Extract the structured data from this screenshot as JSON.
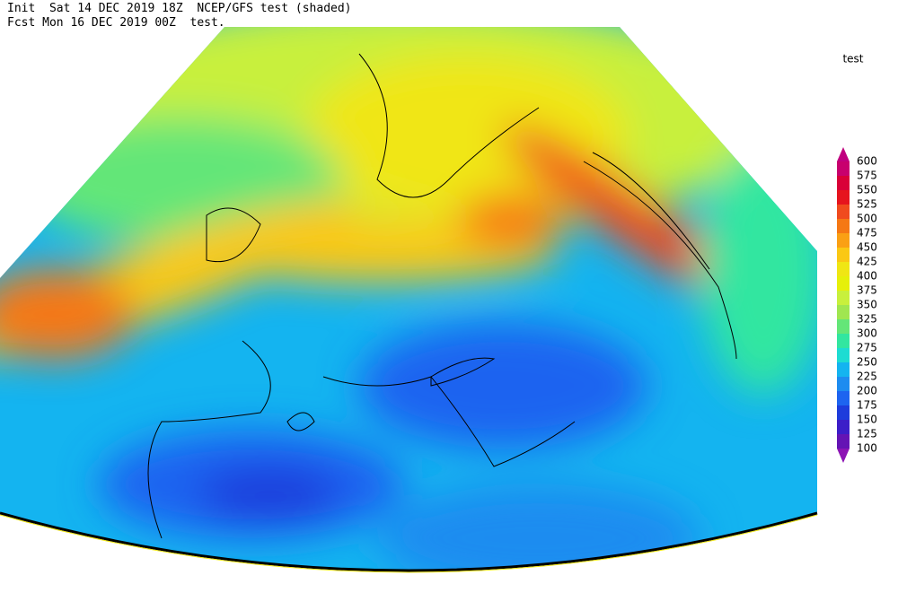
{
  "header": {
    "line1": "Init  Sat 14 DEC 2019 18Z  NCEP/GFS test (shaded)",
    "line2": "Fcst Mon 16 DEC 2019 00Z  test."
  },
  "legend": {
    "title": "test",
    "levels": [
      600,
      575,
      550,
      525,
      500,
      475,
      450,
      425,
      400,
      375,
      350,
      325,
      300,
      275,
      250,
      225,
      200,
      175,
      150,
      125,
      100
    ],
    "colors": [
      "#c0007f",
      "#c8006e",
      "#d90038",
      "#e6141e",
      "#f04b1e",
      "#f57814",
      "#faa014",
      "#fac814",
      "#f0e614",
      "#e6f00a",
      "#c8f03c",
      "#a0e650",
      "#64e678",
      "#32e6a0",
      "#1edcd2",
      "#14b4f0",
      "#1e8cf0",
      "#1e64f0",
      "#1e3cdc",
      "#3c1ec8",
      "#6414b4",
      "#8c14b4"
    ]
  }
}
